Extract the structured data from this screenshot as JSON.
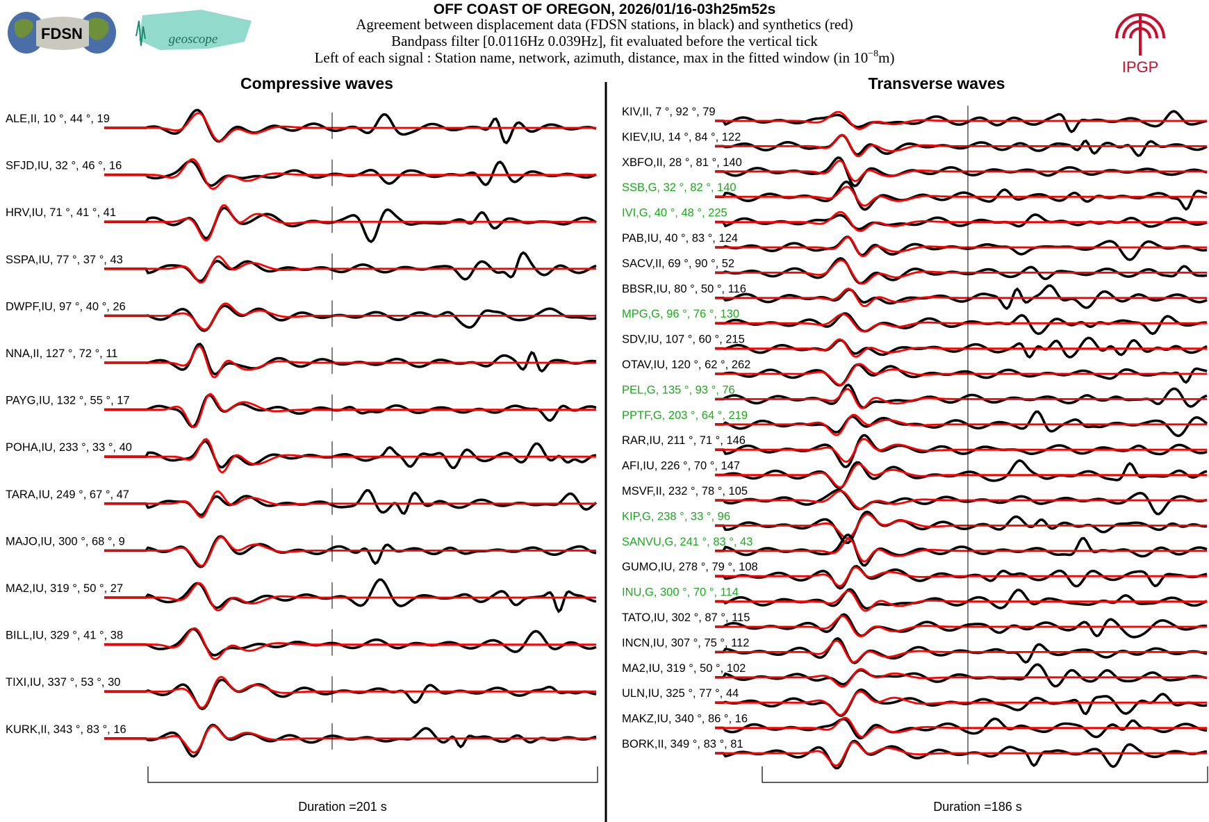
{
  "header": {
    "title": "OFF COAST OF OREGON, 2026/01/16-03h25m52s",
    "line1": "Agreement between displacement data (FDSN stations, in black) and synthetics (red)",
    "line2": "Bandpass filter [0.0116Hz 0.039Hz], fit evaluated before the vertical tick",
    "line3_prefix": "Left of each signal : Station name, network, azimuth, distance, max in the fitted window (in 10",
    "line3_exp": "−8",
    "line3_suffix": "m)"
  },
  "logos": {
    "fdsn": "FDSN",
    "geoscope": "geoscope",
    "ipgp": "IPGP"
  },
  "colors": {
    "data": "#000000",
    "synthetic": "#ff0000",
    "geoscope_label": "#1aaa1a",
    "fdsn_label": "#000000",
    "ipgp_red": "#c8102e"
  },
  "chart_data": [
    {
      "type": "line",
      "title": "Compressive waves",
      "xlabel": "Duration =201 s",
      "series_names": [
        "data (black)",
        "synthetics (red)"
      ],
      "stations": [
        {
          "name": "ALE",
          "network": "II",
          "azimuth": 10,
          "distance": 44,
          "max": 19,
          "geoscope": false
        },
        {
          "name": "SFJD",
          "network": "IU",
          "azimuth": 32,
          "distance": 46,
          "max": 16,
          "geoscope": false
        },
        {
          "name": "HRV",
          "network": "IU",
          "azimuth": 71,
          "distance": 41,
          "max": 41,
          "geoscope": false
        },
        {
          "name": "SSPA",
          "network": "IU",
          "azimuth": 77,
          "distance": 37,
          "max": 43,
          "geoscope": false
        },
        {
          "name": "DWPF",
          "network": "IU",
          "azimuth": 97,
          "distance": 40,
          "max": 26,
          "geoscope": false
        },
        {
          "name": "NNA",
          "network": "II",
          "azimuth": 127,
          "distance": 72,
          "max": 11,
          "geoscope": false
        },
        {
          "name": "PAYG",
          "network": "IU",
          "azimuth": 132,
          "distance": 55,
          "max": 17,
          "geoscope": false
        },
        {
          "name": "POHA",
          "network": "IU",
          "azimuth": 233,
          "distance": 33,
          "max": 40,
          "geoscope": false
        },
        {
          "name": "TARA",
          "network": "IU",
          "azimuth": 249,
          "distance": 67,
          "max": 47,
          "geoscope": false
        },
        {
          "name": "MAJO",
          "network": "IU",
          "azimuth": 300,
          "distance": 68,
          "max": 9,
          "geoscope": false
        },
        {
          "name": "MA2",
          "network": "IU",
          "azimuth": 319,
          "distance": 50,
          "max": 27,
          "geoscope": false
        },
        {
          "name": "BILL",
          "network": "IU",
          "azimuth": 329,
          "distance": 41,
          "max": 38,
          "geoscope": false
        },
        {
          "name": "TIXI",
          "network": "IU",
          "azimuth": 337,
          "distance": 53,
          "max": 30,
          "geoscope": false
        },
        {
          "name": "KURK",
          "network": "II",
          "azimuth": 343,
          "distance": 83,
          "max": 16,
          "geoscope": false
        }
      ]
    },
    {
      "type": "line",
      "title": "Transverse waves",
      "xlabel": "Duration =186 s",
      "series_names": [
        "data (black)",
        "synthetics (red)"
      ],
      "stations": [
        {
          "name": "KIV",
          "network": "II",
          "azimuth": 7,
          "distance": 92,
          "max": 79,
          "geoscope": false
        },
        {
          "name": "KIEV",
          "network": "IU",
          "azimuth": 14,
          "distance": 84,
          "max": 122,
          "geoscope": false
        },
        {
          "name": "XBFO",
          "network": "II",
          "azimuth": 28,
          "distance": 81,
          "max": 140,
          "geoscope": false
        },
        {
          "name": "SSB",
          "network": "G",
          "azimuth": 32,
          "distance": 82,
          "max": 140,
          "geoscope": true
        },
        {
          "name": "IVI",
          "network": "G",
          "azimuth": 40,
          "distance": 48,
          "max": 225,
          "geoscope": true
        },
        {
          "name": "PAB",
          "network": "IU",
          "azimuth": 40,
          "distance": 83,
          "max": 124,
          "geoscope": false
        },
        {
          "name": "SACV",
          "network": "II",
          "azimuth": 69,
          "distance": 90,
          "max": 52,
          "geoscope": false
        },
        {
          "name": "BBSR",
          "network": "IU",
          "azimuth": 80,
          "distance": 50,
          "max": 116,
          "geoscope": false
        },
        {
          "name": "MPG",
          "network": "G",
          "azimuth": 96,
          "distance": 76,
          "max": 130,
          "geoscope": true
        },
        {
          "name": "SDV",
          "network": "IU",
          "azimuth": 107,
          "distance": 60,
          "max": 215,
          "geoscope": false
        },
        {
          "name": "OTAV",
          "network": "IU",
          "azimuth": 120,
          "distance": 62,
          "max": 262,
          "geoscope": false
        },
        {
          "name": "PEL",
          "network": "G",
          "azimuth": 135,
          "distance": 93,
          "max": 76,
          "geoscope": true
        },
        {
          "name": "PPTF",
          "network": "G",
          "azimuth": 203,
          "distance": 64,
          "max": 219,
          "geoscope": true
        },
        {
          "name": "RAR",
          "network": "IU",
          "azimuth": 211,
          "distance": 71,
          "max": 146,
          "geoscope": false
        },
        {
          "name": "AFI",
          "network": "IU",
          "azimuth": 226,
          "distance": 70,
          "max": 147,
          "geoscope": false
        },
        {
          "name": "MSVF",
          "network": "II",
          "azimuth": 232,
          "distance": 78,
          "max": 105,
          "geoscope": false
        },
        {
          "name": "KIP",
          "network": "G",
          "azimuth": 238,
          "distance": 33,
          "max": 96,
          "geoscope": true
        },
        {
          "name": "SANVU",
          "network": "G",
          "azimuth": 241,
          "distance": 83,
          "max": 43,
          "geoscope": true
        },
        {
          "name": "GUMO",
          "network": "IU",
          "azimuth": 278,
          "distance": 79,
          "max": 108,
          "geoscope": false
        },
        {
          "name": "INU",
          "network": "G",
          "azimuth": 300,
          "distance": 70,
          "max": 114,
          "geoscope": true
        },
        {
          "name": "TATO",
          "network": "IU",
          "azimuth": 302,
          "distance": 87,
          "max": 115,
          "geoscope": false
        },
        {
          "name": "INCN",
          "network": "IU",
          "azimuth": 307,
          "distance": 75,
          "max": 112,
          "geoscope": false
        },
        {
          "name": "MA2",
          "network": "IU",
          "azimuth": 319,
          "distance": 50,
          "max": 102,
          "geoscope": false
        },
        {
          "name": "ULN",
          "network": "IU",
          "azimuth": 325,
          "distance": 77,
          "max": 44,
          "geoscope": false
        },
        {
          "name": "MAKZ",
          "network": "IU",
          "azimuth": 340,
          "distance": 86,
          "max": 16,
          "geoscope": false
        },
        {
          "name": "BORK",
          "network": "II",
          "azimuth": 349,
          "distance": 83,
          "max": 81,
          "geoscope": false
        }
      ]
    }
  ]
}
